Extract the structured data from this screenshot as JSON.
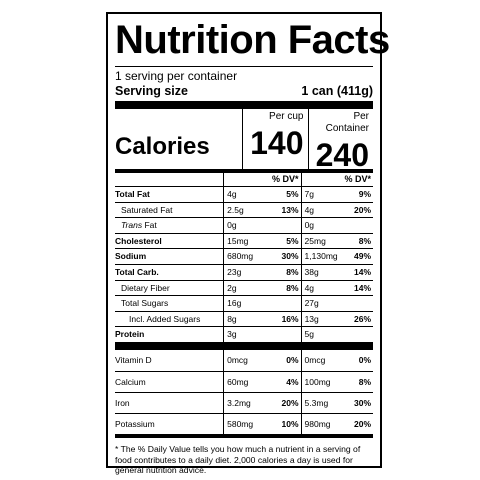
{
  "title": "Nutrition Facts",
  "servings_per_container": "1 serving per container",
  "serving_size": {
    "label": "Serving size",
    "value": "1 can (411g)"
  },
  "calories": {
    "label": "Calories",
    "col_a_header": "Per cup",
    "col_a_value": "140",
    "col_b_header": "Per Container",
    "col_b_value": "240"
  },
  "dv_header": {
    "col_a": "% DV*",
    "col_b": "% DV*"
  },
  "nutrients": [
    {
      "name": "Total Fat",
      "a_amt": "4g",
      "a_dv": "5%",
      "b_amt": "7g",
      "b_dv": "9%"
    },
    {
      "name": "Saturated Fat",
      "a_amt": "2.5g",
      "a_dv": "13%",
      "b_amt": "4g",
      "b_dv": "20%"
    },
    {
      "name_prefix": "Trans",
      "name": " Fat",
      "a_amt": "0g",
      "a_dv": "",
      "b_amt": "0g",
      "b_dv": ""
    },
    {
      "name": "Cholesterol",
      "a_amt": "15mg",
      "a_dv": "5%",
      "b_amt": "25mg",
      "b_dv": "8%"
    },
    {
      "name": "Sodium",
      "a_amt": "680mg",
      "a_dv": "30%",
      "b_amt": "1,130mg",
      "b_dv": "49%"
    },
    {
      "name": "Total Carb.",
      "a_amt": "23g",
      "a_dv": "8%",
      "b_amt": "38g",
      "b_dv": "14%"
    },
    {
      "name": "Dietary Fiber",
      "a_amt": "2g",
      "a_dv": "8%",
      "b_amt": "4g",
      "b_dv": "14%"
    },
    {
      "name": "Total Sugars",
      "a_amt": "16g",
      "a_dv": "",
      "b_amt": "27g",
      "b_dv": ""
    },
    {
      "name": "Incl. Added Sugars",
      "a_amt": "8g",
      "a_dv": "16%",
      "b_amt": "13g",
      "b_dv": "26%"
    },
    {
      "name": "Protein",
      "a_amt": "3g",
      "a_dv": "",
      "b_amt": "5g",
      "b_dv": ""
    }
  ],
  "vitamins": [
    {
      "name": "Vitamin D",
      "a_amt": "0mcg",
      "a_dv": "0%",
      "b_amt": "0mcg",
      "b_dv": "0%"
    },
    {
      "name": "Calcium",
      "a_amt": "60mg",
      "a_dv": "4%",
      "b_amt": "100mg",
      "b_dv": "8%"
    },
    {
      "name": "Iron",
      "a_amt": "3.2mg",
      "a_dv": "20%",
      "b_amt": "5.3mg",
      "b_dv": "30%"
    },
    {
      "name": "Potassium",
      "a_amt": "580mg",
      "a_dv": "10%",
      "b_amt": "980mg",
      "b_dv": "20%"
    }
  ],
  "footnote": "* The % Daily Value tells you how much a nutrient in a serving of food contributes to a daily diet. 2,000 calories a day is used for general nutrition advice."
}
